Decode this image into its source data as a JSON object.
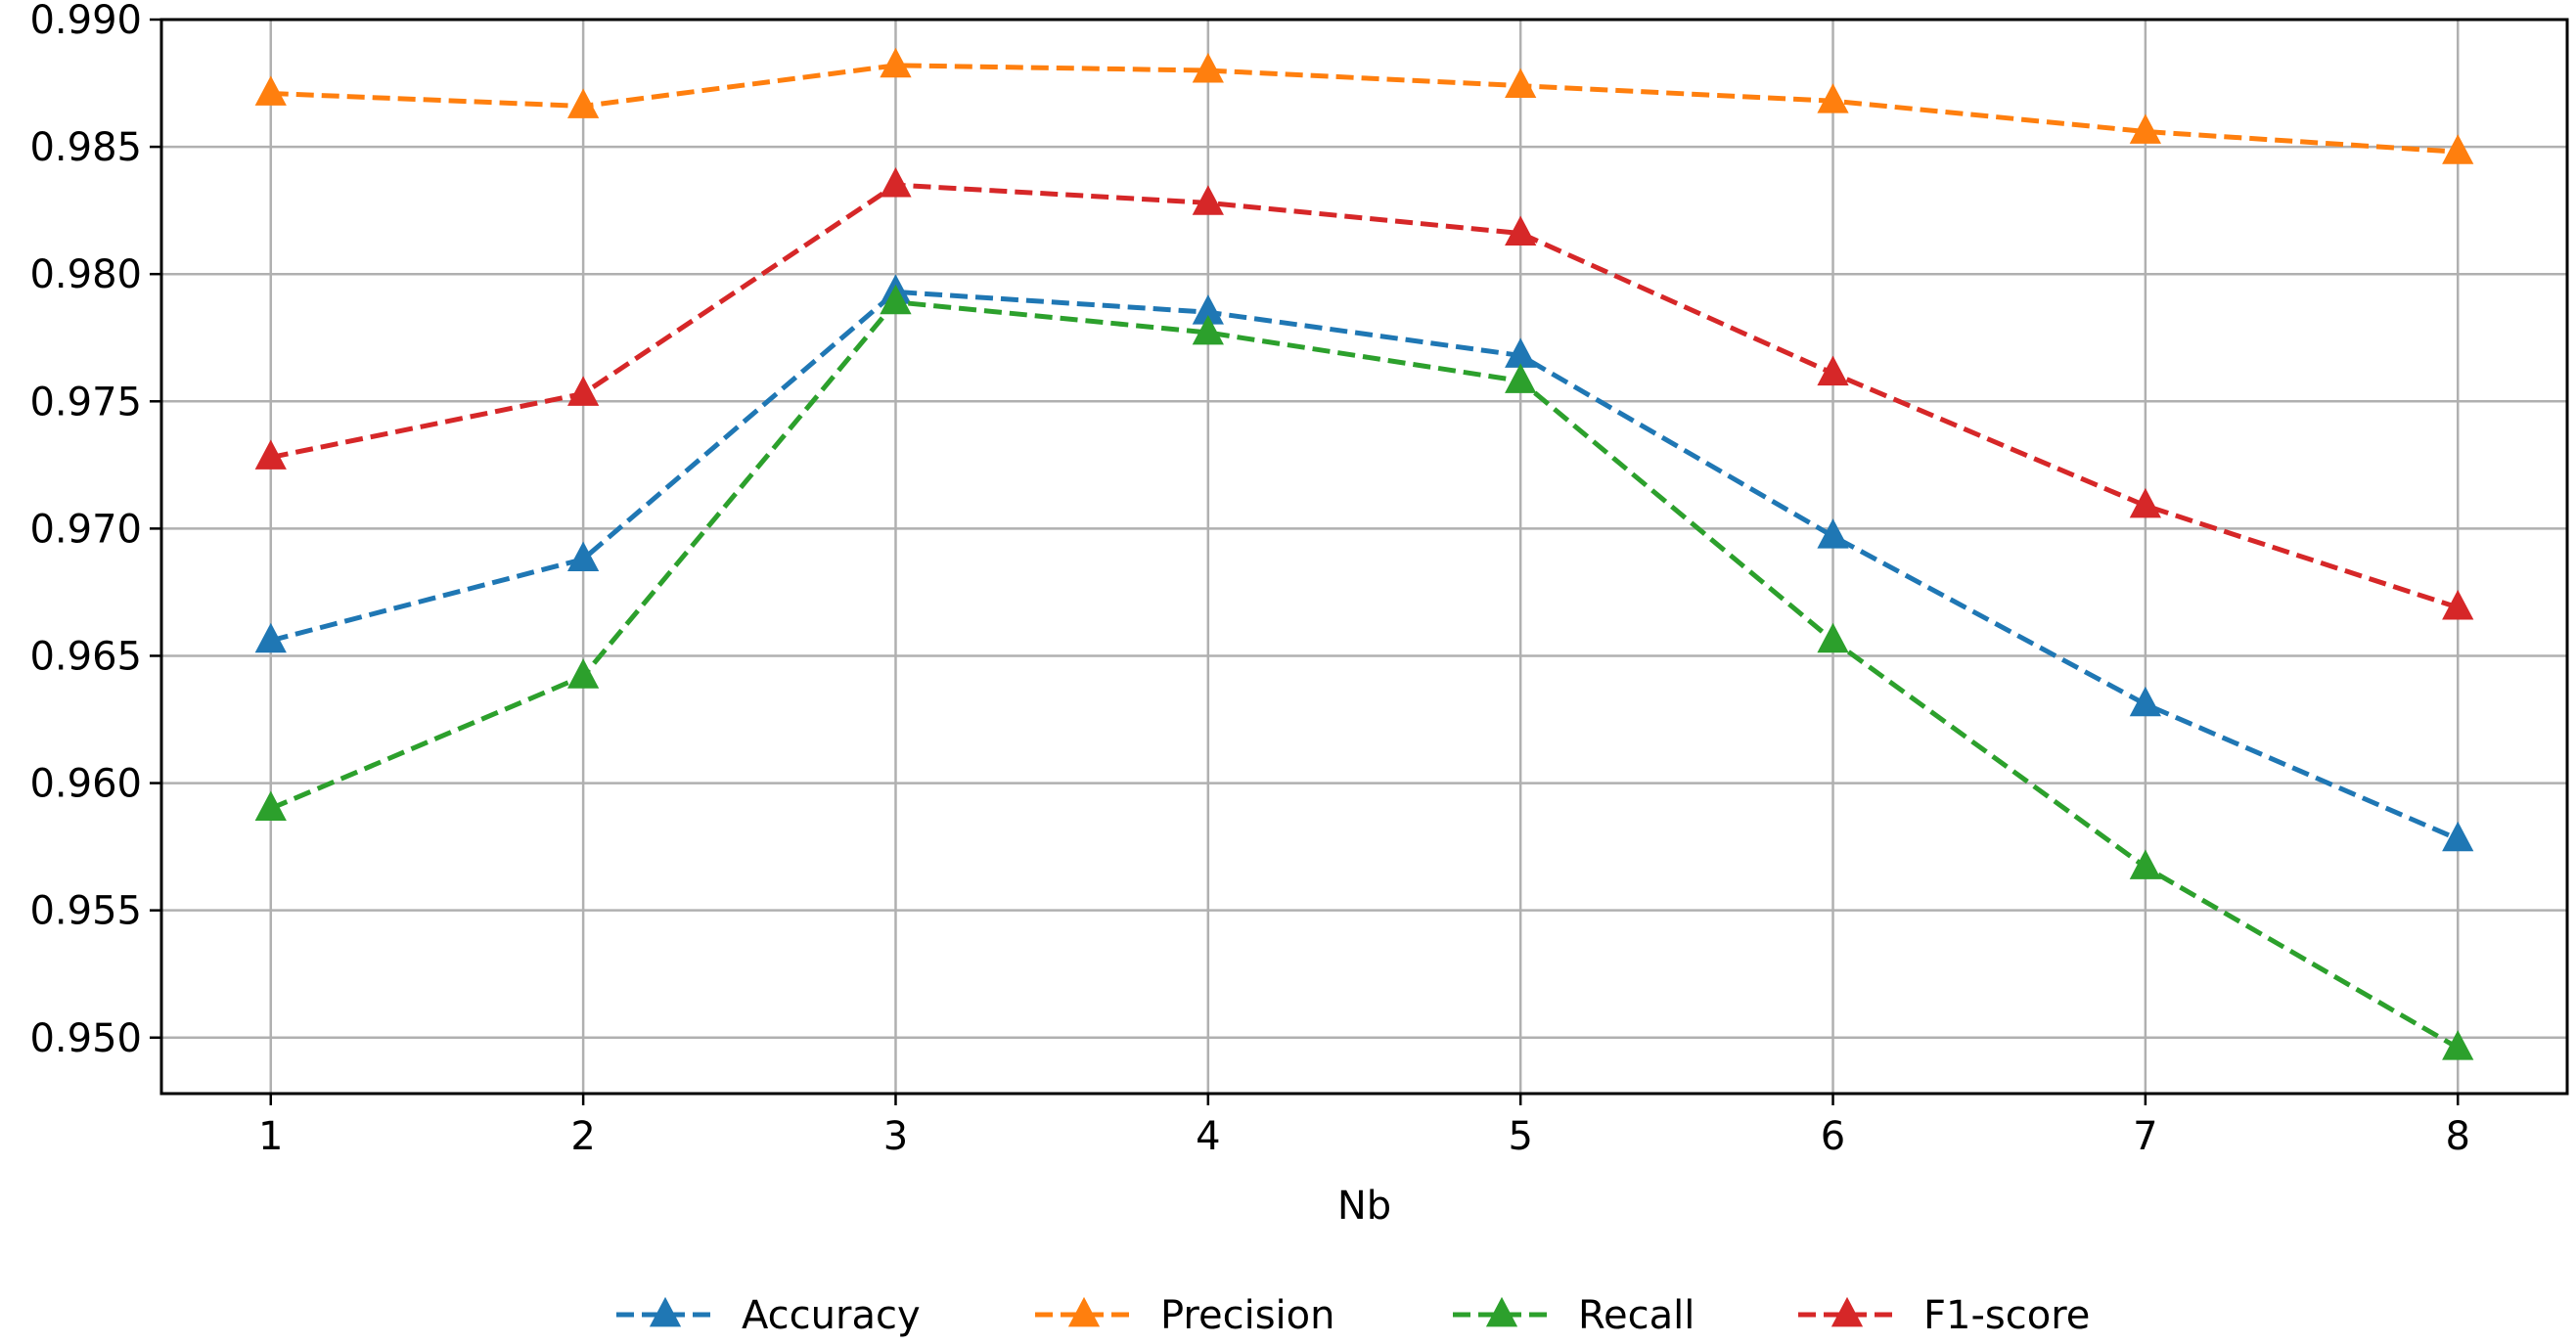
{
  "chart_data": {
    "type": "line",
    "xlabel": "Nb",
    "ylabel": "",
    "x": [
      1,
      2,
      3,
      4,
      5,
      6,
      7,
      8
    ],
    "xlim": [
      0.65,
      8.35
    ],
    "ylim": [
      0.9478,
      0.99
    ],
    "yticks": [
      "0.950",
      "0.955",
      "0.960",
      "0.965",
      "0.970",
      "0.975",
      "0.980",
      "0.985",
      "0.990"
    ],
    "xticks": [
      "1",
      "2",
      "3",
      "4",
      "5",
      "6",
      "7",
      "8"
    ],
    "grid": true,
    "legend_position": "bottom",
    "line_style": "dashed",
    "marker": "triangle-up",
    "series": [
      {
        "name": "Accuracy",
        "color": "#1f77b4",
        "values": [
          0.9656,
          0.9688,
          0.9793,
          0.9785,
          0.9768,
          0.9697,
          0.9631,
          0.9578
        ]
      },
      {
        "name": "Precision",
        "color": "#ff7f0e",
        "values": [
          0.9871,
          0.9866,
          0.9882,
          0.988,
          0.9874,
          0.9868,
          0.9856,
          0.9848
        ]
      },
      {
        "name": "Recall",
        "color": "#2ca02c",
        "values": [
          0.959,
          0.9642,
          0.9789,
          0.9777,
          0.9758,
          0.9656,
          0.9567,
          0.9496
        ]
      },
      {
        "name": "F1-score",
        "color": "#d62728",
        "values": [
          0.9728,
          0.9753,
          0.9835,
          0.9828,
          0.9816,
          0.9761,
          0.9709,
          0.9669
        ]
      }
    ]
  }
}
